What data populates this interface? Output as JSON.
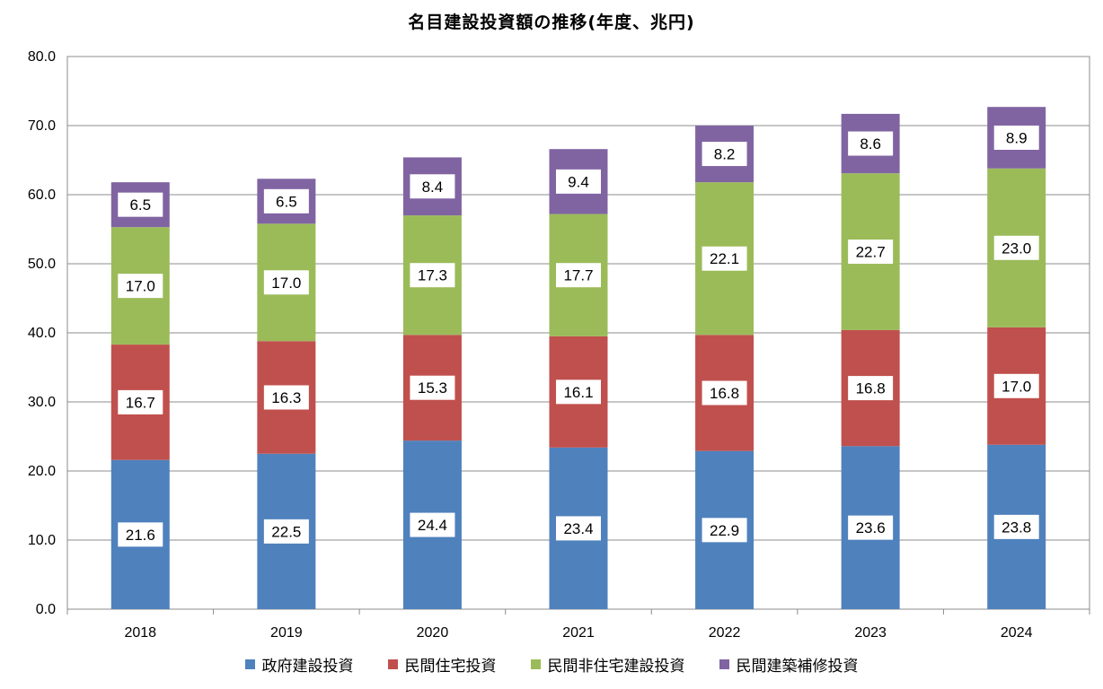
{
  "chart_data": {
    "type": "bar",
    "stacked": true,
    "title": "名目建設投資額の推移(年度、兆円)",
    "categories": [
      "2018",
      "2019",
      "2020",
      "2021",
      "2022",
      "2023",
      "2024"
    ],
    "series": [
      {
        "name": "政府建設投資",
        "color": "#4f81bd",
        "values": [
          21.6,
          22.5,
          24.4,
          23.4,
          22.9,
          23.6,
          23.8
        ]
      },
      {
        "name": "民間住宅投資",
        "color": "#c0504d",
        "values": [
          16.7,
          16.3,
          15.3,
          16.1,
          16.8,
          16.8,
          17.0
        ]
      },
      {
        "name": "民間非住宅建設投資",
        "color": "#9bbb59",
        "values": [
          17.0,
          17.0,
          17.3,
          17.7,
          22.1,
          22.7,
          23.0
        ]
      },
      {
        "name": "民間建築補修投資",
        "color": "#8064a2",
        "values": [
          6.5,
          6.5,
          8.4,
          9.4,
          8.2,
          8.6,
          8.9
        ]
      }
    ],
    "yticks": [
      "0.0",
      "10.0",
      "20.0",
      "30.0",
      "40.0",
      "50.0",
      "60.0",
      "70.0",
      "80.0"
    ],
    "ylim": [
      0,
      80
    ],
    "grid": true,
    "legend_position": "bottom"
  }
}
